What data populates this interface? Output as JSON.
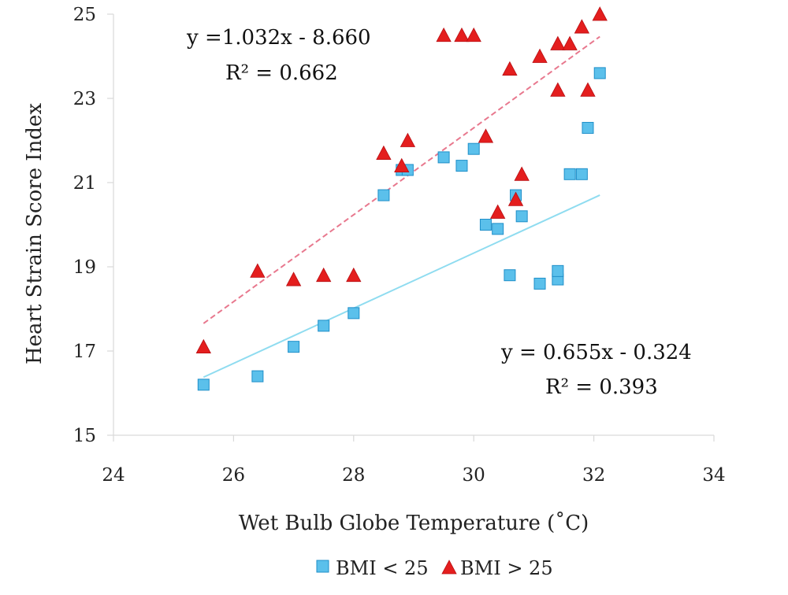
{
  "chart_data": {
    "type": "scatter",
    "xlabel": "Wet Bulb Globe Temperature (˚C)",
    "ylabel": "Heart Strain Score Index",
    "xlim": [
      24,
      34
    ],
    "ylim": [
      15,
      25
    ],
    "x_ticks": [
      24,
      26,
      28,
      30,
      32,
      34
    ],
    "y_ticks": [
      15,
      17,
      19,
      21,
      23,
      25
    ],
    "grid": false,
    "legend_position": "bottom",
    "series": [
      {
        "name": "BMI < 25",
        "marker": "square",
        "color": "#5bc0eb",
        "points": [
          [
            25.5,
            16.2
          ],
          [
            26.4,
            16.4
          ],
          [
            27.0,
            17.1
          ],
          [
            27.5,
            17.6
          ],
          [
            28.0,
            17.9
          ],
          [
            28.5,
            20.7
          ],
          [
            28.8,
            21.3
          ],
          [
            28.9,
            21.3
          ],
          [
            29.5,
            21.6
          ],
          [
            29.8,
            21.4
          ],
          [
            30.0,
            21.8
          ],
          [
            30.2,
            20.0
          ],
          [
            30.4,
            19.9
          ],
          [
            30.6,
            18.8
          ],
          [
            30.7,
            20.7
          ],
          [
            30.8,
            20.2
          ],
          [
            31.1,
            18.6
          ],
          [
            31.4,
            18.7
          ],
          [
            31.4,
            18.9
          ],
          [
            31.6,
            21.2
          ],
          [
            31.8,
            21.2
          ],
          [
            31.9,
            22.3
          ],
          [
            32.1,
            23.6
          ]
        ],
        "trendline": {
          "slope": 0.655,
          "intercept": -0.324,
          "x_range": [
            25.5,
            32.1
          ],
          "color": "#8fdcf0",
          "style": "solid"
        }
      },
      {
        "name": "BMI > 25",
        "marker": "triangle",
        "color": "#e41e1e",
        "points": [
          [
            25.5,
            17.1
          ],
          [
            26.4,
            18.9
          ],
          [
            27.0,
            18.7
          ],
          [
            27.5,
            18.8
          ],
          [
            28.0,
            18.8
          ],
          [
            28.5,
            21.7
          ],
          [
            28.8,
            21.4
          ],
          [
            28.9,
            22.0
          ],
          [
            29.5,
            24.5
          ],
          [
            29.8,
            24.5
          ],
          [
            30.0,
            24.5
          ],
          [
            30.2,
            22.1
          ],
          [
            30.4,
            20.3
          ],
          [
            30.6,
            23.7
          ],
          [
            30.7,
            20.6
          ],
          [
            30.8,
            21.2
          ],
          [
            31.1,
            24.0
          ],
          [
            31.4,
            23.2
          ],
          [
            31.4,
            24.3
          ],
          [
            31.6,
            24.3
          ],
          [
            31.8,
            24.7
          ],
          [
            31.9,
            23.2
          ],
          [
            32.1,
            25.0
          ]
        ],
        "trendline": {
          "slope": 1.032,
          "intercept": -8.66,
          "x_range": [
            25.5,
            32.1
          ],
          "color": "#e8788e",
          "style": "dashed"
        }
      }
    ],
    "annotations": [
      {
        "id": "eq1",
        "text": "y =1.032x - 8.660",
        "series": "BMI > 25"
      },
      {
        "id": "r2_1",
        "text": "R² = 0.662",
        "series": "BMI > 25"
      },
      {
        "id": "eq2",
        "text": "y = 0.655x - 0.324",
        "series": "BMI < 25"
      },
      {
        "id": "r2_2",
        "text": "R² = 0.393",
        "series": "BMI < 25"
      }
    ]
  }
}
